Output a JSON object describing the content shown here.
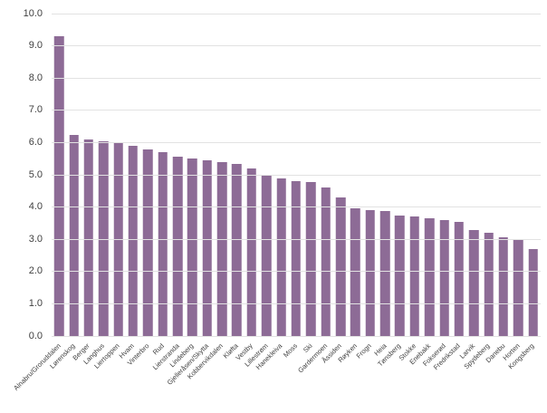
{
  "chart_data": {
    "type": "bar",
    "title": "",
    "xlabel": "",
    "ylabel": "",
    "legend": "none",
    "grid": true,
    "ylim": [
      0,
      10
    ],
    "ytick_step": 1.0,
    "yticks": [
      "0.0",
      "1.0",
      "2.0",
      "3.0",
      "4.0",
      "5.0",
      "6.0",
      "7.0",
      "8.0",
      "9.0",
      "10.0"
    ],
    "categories": [
      "Alnabru/Groruddalen",
      "Lørenskog",
      "Berger",
      "Langhus",
      "Liertoppen",
      "Hvam",
      "Vinterbro",
      "Rud",
      "Lierstranda",
      "Lindeberg",
      "Gjelleråsen/Skytta",
      "Kobbervikdalen",
      "Kløfta",
      "Vestby",
      "Lillestrøm",
      "Hanekleiva",
      "Moss",
      "Ski",
      "Gardermoen",
      "Åssiden",
      "Røyken",
      "Frogn",
      "Heia",
      "Tønsberg",
      "Stokke",
      "Enebakk",
      "Fokserød",
      "Fredrikstad",
      "Larvik",
      "Spydeberg",
      "Danebu",
      "Horten",
      "Kongsberg"
    ],
    "values": [
      9.3,
      6.25,
      6.1,
      6.05,
      6.0,
      5.9,
      5.8,
      5.7,
      5.55,
      5.5,
      5.45,
      5.4,
      5.35,
      5.2,
      5.0,
      4.9,
      4.8,
      4.78,
      4.6,
      4.3,
      3.95,
      3.9,
      3.88,
      3.75,
      3.7,
      3.65,
      3.6,
      3.55,
      3.3,
      3.2,
      3.05,
      3.0,
      2.7
    ],
    "colors": {
      "bar": "#8d6b96",
      "gridline": "#e2e2e2",
      "axis_text": "#404040",
      "background": "#ffffff"
    }
  }
}
